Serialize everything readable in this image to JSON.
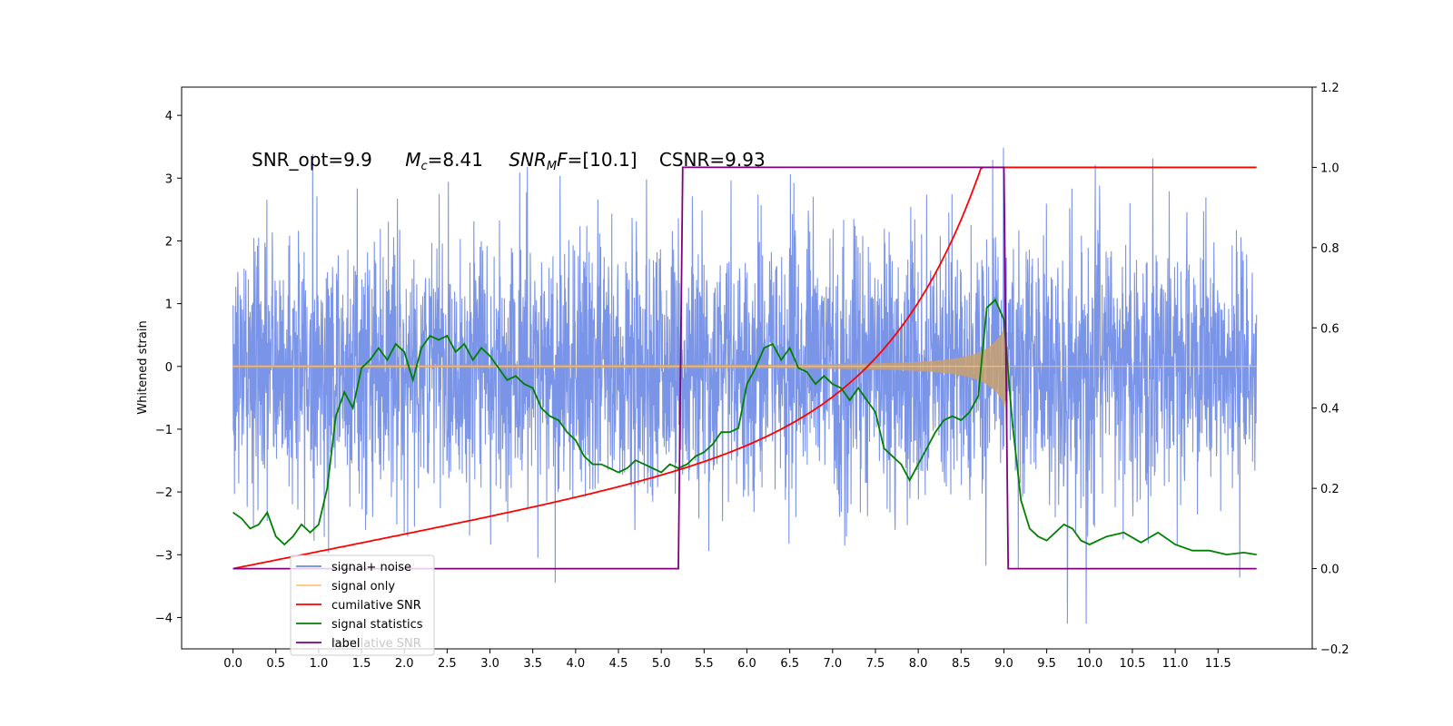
{
  "chart_data": {
    "type": "line",
    "ylabel": "Whitened strain",
    "annotation": {
      "snr_opt": "SNR_opt=9.9",
      "mc_sym": "M",
      "mc_sub": "c",
      "mc_val": "=8.41",
      "snrmf_sym": "SNR",
      "snrmf_sub": "M",
      "snrmf_f": "F",
      "snrmf_val": "=[10.1]",
      "csnr": "CSNR=9.93"
    },
    "x_ticks": [
      "0.0",
      "0.5",
      "1.0",
      "1.5",
      "2.0",
      "2.5",
      "3.0",
      "3.5",
      "4.0",
      "4.5",
      "5.0",
      "5.5",
      "6.0",
      "6.5",
      "7.0",
      "7.5",
      "8.0",
      "8.5",
      "9.0",
      "9.5",
      "10.0",
      "10.5",
      "11.0",
      "11.5"
    ],
    "y_left_ticks": [
      "4",
      "3",
      "2",
      "1",
      "0",
      "−1",
      "−2",
      "−3",
      "−4"
    ],
    "y_left_values": [
      4,
      3,
      2,
      1,
      0,
      -1,
      -2,
      -3,
      -4
    ],
    "y_right_ticks": [
      "1.2",
      "1.0",
      "0.8",
      "0.6",
      "0.4",
      "0.2",
      "0.0",
      "−0.2"
    ],
    "y_right_values": [
      1.2,
      1.0,
      0.8,
      0.6,
      0.4,
      0.2,
      0.0,
      -0.2
    ],
    "xlim": [
      -0.6,
      12.6
    ],
    "ylim_left": [
      -4.5,
      4.45
    ],
    "ylim_right": [
      -0.2,
      1.2
    ],
    "legend": {
      "placement": "lower-left",
      "entries": [
        {
          "label": "signal+ noise",
          "color": "#6b88e6"
        },
        {
          "label": "signal only",
          "color": "#ffc27a"
        },
        {
          "label": "cumilative SNR",
          "color": "#ff0000"
        },
        {
          "label": "signal statistics",
          "color": "#008000"
        },
        {
          "label": "label",
          "color": "#800080"
        }
      ],
      "ghost_text": "cumilative SNR"
    },
    "series": [
      {
        "name": "signal statistics",
        "axis": "right",
        "color": "#008000",
        "x": [
          0.0,
          0.1,
          0.2,
          0.3,
          0.4,
          0.5,
          0.6,
          0.7,
          0.8,
          0.9,
          1.0,
          1.1,
          1.2,
          1.3,
          1.4,
          1.5,
          1.6,
          1.7,
          1.8,
          1.9,
          2.0,
          2.1,
          2.2,
          2.3,
          2.4,
          2.5,
          2.6,
          2.7,
          2.8,
          2.9,
          3.0,
          3.1,
          3.2,
          3.3,
          3.4,
          3.5,
          3.6,
          3.7,
          3.8,
          3.9,
          4.0,
          4.1,
          4.2,
          4.3,
          4.4,
          4.5,
          4.6,
          4.7,
          4.8,
          4.9,
          5.0,
          5.1,
          5.2,
          5.3,
          5.4,
          5.5,
          5.6,
          5.7,
          5.8,
          5.9,
          6.0,
          6.1,
          6.2,
          6.3,
          6.4,
          6.5,
          6.6,
          6.7,
          6.8,
          6.9,
          7.0,
          7.1,
          7.2,
          7.3,
          7.4,
          7.5,
          7.6,
          7.7,
          7.8,
          7.9,
          8.0,
          8.1,
          8.2,
          8.3,
          8.4,
          8.5,
          8.6,
          8.7,
          8.8,
          8.9,
          9.0,
          9.1,
          9.2,
          9.3,
          9.4,
          9.5,
          9.6,
          9.7,
          9.8,
          9.9,
          10.0,
          10.2,
          10.4,
          10.6,
          10.8,
          11.0,
          11.2,
          11.4,
          11.6,
          11.8,
          11.95
        ],
        "values": [
          0.14,
          0.125,
          0.1,
          0.11,
          0.14,
          0.08,
          0.06,
          0.08,
          0.11,
          0.09,
          0.11,
          0.2,
          0.38,
          0.44,
          0.4,
          0.5,
          0.52,
          0.55,
          0.52,
          0.56,
          0.54,
          0.47,
          0.55,
          0.58,
          0.57,
          0.58,
          0.54,
          0.56,
          0.52,
          0.55,
          0.53,
          0.5,
          0.47,
          0.48,
          0.46,
          0.45,
          0.4,
          0.38,
          0.37,
          0.34,
          0.32,
          0.28,
          0.26,
          0.26,
          0.25,
          0.24,
          0.25,
          0.27,
          0.26,
          0.25,
          0.24,
          0.26,
          0.25,
          0.26,
          0.28,
          0.29,
          0.31,
          0.34,
          0.34,
          0.35,
          0.46,
          0.5,
          0.55,
          0.56,
          0.52,
          0.55,
          0.5,
          0.49,
          0.46,
          0.48,
          0.46,
          0.45,
          0.42,
          0.45,
          0.42,
          0.39,
          0.3,
          0.28,
          0.26,
          0.22,
          0.26,
          0.3,
          0.34,
          0.37,
          0.38,
          0.37,
          0.39,
          0.43,
          0.65,
          0.67,
          0.62,
          0.36,
          0.17,
          0.1,
          0.08,
          0.07,
          0.09,
          0.11,
          0.1,
          0.07,
          0.06,
          0.08,
          0.09,
          0.065,
          0.09,
          0.06,
          0.045,
          0.045,
          0.035,
          0.04,
          0.035
        ]
      },
      {
        "name": "label",
        "axis": "right",
        "color": "#800080",
        "x": [
          0.0,
          5.2,
          5.25,
          9.0,
          9.05,
          11.95
        ],
        "values": [
          0.0,
          0.0,
          1.0,
          1.0,
          0.0,
          0.0
        ]
      }
    ]
  }
}
